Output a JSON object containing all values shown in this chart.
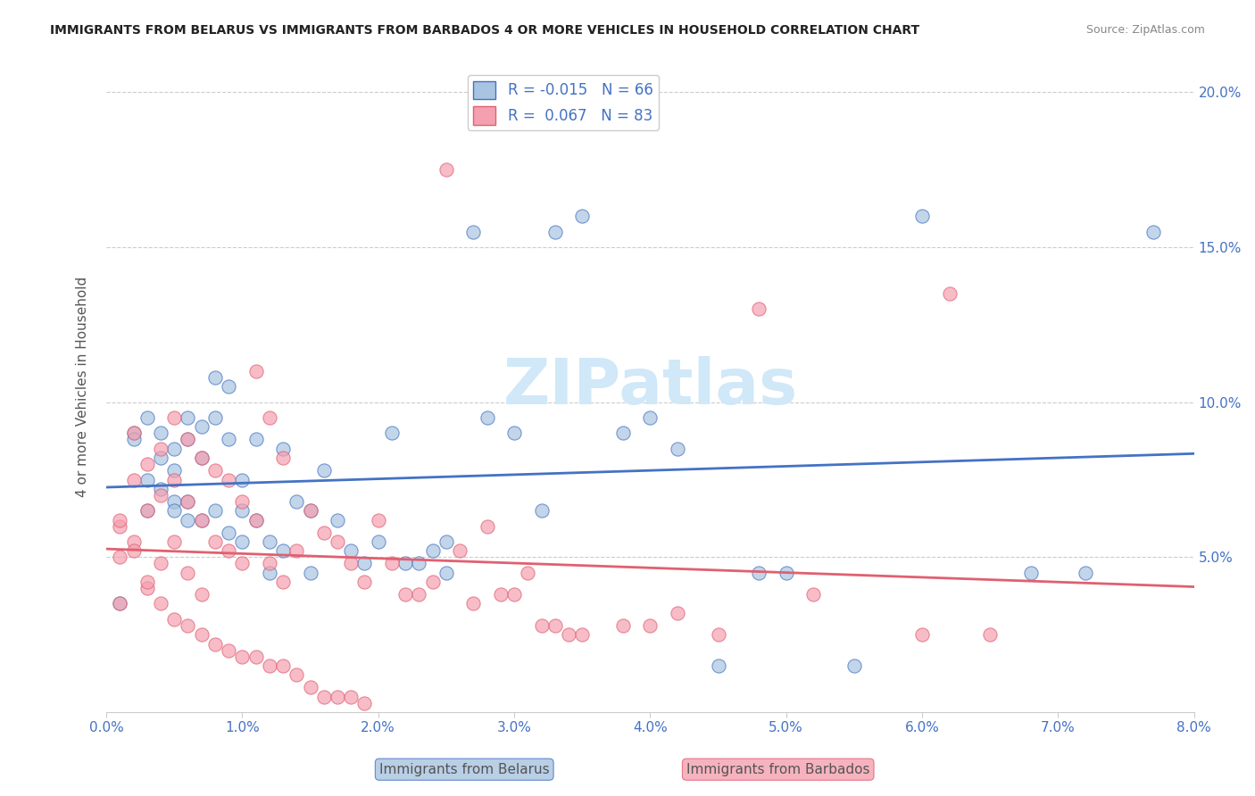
{
  "title": "IMMIGRANTS FROM BELARUS VS IMMIGRANTS FROM BARBADOS 4 OR MORE VEHICLES IN HOUSEHOLD CORRELATION CHART",
  "source": "Source: ZipAtlas.com",
  "xlabel_bottom": "",
  "ylabel_left": "4 or more Vehicles in Household",
  "legend_label1": "Immigrants from Belarus",
  "legend_label2": "Immigrants from Barbados",
  "r1": -0.015,
  "n1": 66,
  "r2": 0.067,
  "n2": 83,
  "color1": "#a8c4e0",
  "color2": "#f4a0b0",
  "line_color1": "#4472c4",
  "line_color2": "#e06070",
  "xlim": [
    0.0,
    0.08
  ],
  "ylim": [
    0.0,
    0.21
  ],
  "xticks": [
    0.0,
    0.01,
    0.02,
    0.03,
    0.04,
    0.05,
    0.06,
    0.07,
    0.08
  ],
  "yticks_right": [
    0.05,
    0.1,
    0.15,
    0.2
  ],
  "ytick_labels_right": [
    "5.0%",
    "10.0%",
    "15.0%",
    "20.0%"
  ],
  "xtick_labels": [
    "0.0%",
    "1.0%",
    "2.0%",
    "3.0%",
    "4.0%",
    "5.0%",
    "6.0%",
    "7.0%",
    "8.0%"
  ],
  "watermark": "ZIPatlas",
  "watermark_color": "#d0e8f8",
  "scatter1_x": [
    0.001,
    0.002,
    0.002,
    0.003,
    0.003,
    0.003,
    0.004,
    0.004,
    0.004,
    0.005,
    0.005,
    0.005,
    0.006,
    0.006,
    0.006,
    0.007,
    0.007,
    0.007,
    0.008,
    0.008,
    0.008,
    0.009,
    0.009,
    0.009,
    0.01,
    0.01,
    0.01,
    0.011,
    0.011,
    0.012,
    0.012,
    0.013,
    0.013,
    0.014,
    0.015,
    0.015,
    0.016,
    0.017,
    0.018,
    0.019,
    0.02,
    0.021,
    0.022,
    0.023,
    0.024,
    0.025,
    0.025,
    0.027,
    0.028,
    0.03,
    0.032,
    0.033,
    0.035,
    0.038,
    0.04,
    0.042,
    0.045,
    0.048,
    0.05,
    0.055,
    0.06,
    0.068,
    0.072,
    0.077,
    0.005,
    0.006
  ],
  "scatter1_y": [
    0.035,
    0.09,
    0.088,
    0.095,
    0.075,
    0.065,
    0.09,
    0.082,
    0.072,
    0.085,
    0.078,
    0.068,
    0.095,
    0.088,
    0.068,
    0.092,
    0.082,
    0.062,
    0.108,
    0.095,
    0.065,
    0.105,
    0.088,
    0.058,
    0.075,
    0.065,
    0.055,
    0.088,
    0.062,
    0.055,
    0.045,
    0.085,
    0.052,
    0.068,
    0.065,
    0.045,
    0.078,
    0.062,
    0.052,
    0.048,
    0.055,
    0.09,
    0.048,
    0.048,
    0.052,
    0.055,
    0.045,
    0.155,
    0.095,
    0.09,
    0.065,
    0.155,
    0.16,
    0.09,
    0.095,
    0.085,
    0.015,
    0.045,
    0.045,
    0.015,
    0.16,
    0.045,
    0.045,
    0.155,
    0.065,
    0.062
  ],
  "scatter2_x": [
    0.001,
    0.001,
    0.001,
    0.002,
    0.002,
    0.002,
    0.003,
    0.003,
    0.003,
    0.004,
    0.004,
    0.004,
    0.005,
    0.005,
    0.005,
    0.006,
    0.006,
    0.006,
    0.007,
    0.007,
    0.007,
    0.008,
    0.008,
    0.009,
    0.009,
    0.01,
    0.01,
    0.011,
    0.011,
    0.012,
    0.012,
    0.013,
    0.013,
    0.014,
    0.015,
    0.016,
    0.017,
    0.018,
    0.019,
    0.02,
    0.021,
    0.022,
    0.023,
    0.024,
    0.025,
    0.026,
    0.027,
    0.028,
    0.029,
    0.03,
    0.031,
    0.032,
    0.033,
    0.034,
    0.035,
    0.038,
    0.04,
    0.042,
    0.045,
    0.048,
    0.052,
    0.06,
    0.065,
    0.001,
    0.002,
    0.003,
    0.004,
    0.005,
    0.006,
    0.007,
    0.008,
    0.009,
    0.01,
    0.011,
    0.012,
    0.013,
    0.014,
    0.015,
    0.016,
    0.017,
    0.018,
    0.019,
    0.062
  ],
  "scatter2_y": [
    0.06,
    0.05,
    0.035,
    0.09,
    0.075,
    0.055,
    0.08,
    0.065,
    0.04,
    0.085,
    0.07,
    0.048,
    0.095,
    0.075,
    0.055,
    0.088,
    0.068,
    0.045,
    0.082,
    0.062,
    0.038,
    0.078,
    0.055,
    0.075,
    0.052,
    0.068,
    0.048,
    0.11,
    0.062,
    0.095,
    0.048,
    0.082,
    0.042,
    0.052,
    0.065,
    0.058,
    0.055,
    0.048,
    0.042,
    0.062,
    0.048,
    0.038,
    0.038,
    0.042,
    0.175,
    0.052,
    0.035,
    0.06,
    0.038,
    0.038,
    0.045,
    0.028,
    0.028,
    0.025,
    0.025,
    0.028,
    0.028,
    0.032,
    0.025,
    0.13,
    0.038,
    0.025,
    0.025,
    0.062,
    0.052,
    0.042,
    0.035,
    0.03,
    0.028,
    0.025,
    0.022,
    0.02,
    0.018,
    0.018,
    0.015,
    0.015,
    0.012,
    0.008,
    0.005,
    0.005,
    0.005,
    0.003,
    0.135
  ]
}
